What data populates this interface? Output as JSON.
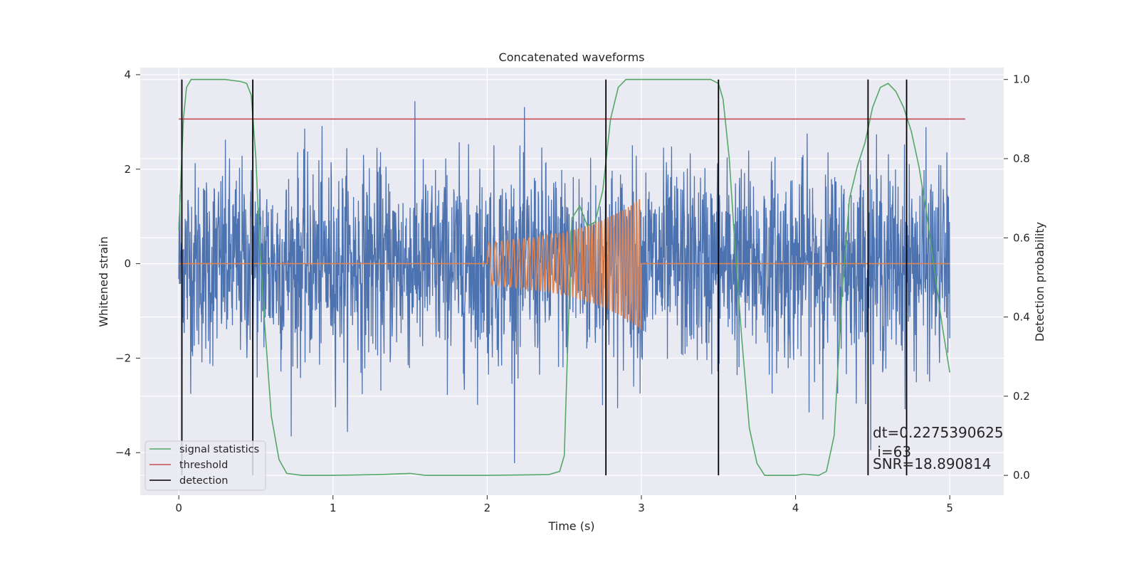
{
  "chart_data": {
    "type": "line",
    "title": "Concatenated waveforms",
    "xlabel": "Time (s)",
    "ylabel_left": "Whitened strain",
    "ylabel_right": "Detection probability",
    "xlim": [
      -0.25,
      5.35
    ],
    "ylim_left": [
      -4.9,
      4.15
    ],
    "ylim_right": [
      -0.05,
      1.03
    ],
    "xticks": [
      0,
      1,
      2,
      3,
      4,
      5
    ],
    "yticks_left": [
      -4,
      -2,
      0,
      2,
      4
    ],
    "yticks_right": [
      0.0,
      0.2,
      0.4,
      0.6,
      0.8,
      1.0
    ],
    "xtick_labels": [
      "0",
      "1",
      "2",
      "3",
      "4",
      "5"
    ],
    "ytick_labels_left": [
      "−4",
      "−2",
      "0",
      "2",
      "4"
    ],
    "ytick_labels_right": [
      "0.0",
      "0.2",
      "0.4",
      "0.6",
      "0.8",
      "1.0"
    ],
    "grid": true,
    "legend_position": "lower-left",
    "colors": {
      "background": "#eaeaf2",
      "grid": "#ffffff",
      "strain": "#4c72b0",
      "injection": "#dd8452",
      "signal_statistics": "#55a868",
      "threshold": "#c44e52",
      "detection": "#000000"
    },
    "series": [
      {
        "name": "",
        "role": "whitened strain",
        "axis": "left",
        "description_values": {
          "x_start": 0,
          "x_end": 5,
          "typical_amplitude": 1.5,
          "max": 3.75,
          "min": -4.5
        }
      },
      {
        "name": "",
        "role": "injected waveform",
        "axis": "left",
        "x": [
          2.0,
          2.1,
          2.2,
          2.3,
          2.4,
          2.5,
          2.6,
          2.7,
          2.8,
          2.9,
          3.0
        ],
        "envelope": [
          0.45,
          0.48,
          0.52,
          0.55,
          0.6,
          0.65,
          0.75,
          0.85,
          1.0,
          1.15,
          1.4
        ]
      },
      {
        "name": "signal statistics",
        "axis": "right",
        "x": [
          0.0,
          0.03,
          0.05,
          0.08,
          0.1,
          0.15,
          0.2,
          0.3,
          0.4,
          0.44,
          0.47,
          0.5,
          0.52,
          0.55,
          0.6,
          0.65,
          0.7,
          0.8,
          1.0,
          1.3,
          1.5,
          1.6,
          2.0,
          2.4,
          2.47,
          2.5,
          2.52,
          2.55,
          2.6,
          2.65,
          2.7,
          2.75,
          2.8,
          2.85,
          2.9,
          3.0,
          3.3,
          3.45,
          3.5,
          3.53,
          3.57,
          3.6,
          3.65,
          3.7,
          3.75,
          3.8,
          3.9,
          4.0,
          4.05,
          4.15,
          4.2,
          4.25,
          4.3,
          4.35,
          4.4,
          4.45,
          4.5,
          4.55,
          4.6,
          4.65,
          4.7,
          4.75,
          4.8,
          4.85,
          4.9,
          4.95,
          5.0
        ],
        "values": [
          0.62,
          0.9,
          0.98,
          1.0,
          1.0,
          1.0,
          1.0,
          1.0,
          0.995,
          0.99,
          0.96,
          0.8,
          0.62,
          0.42,
          0.15,
          0.04,
          0.005,
          0.0,
          0.0,
          0.002,
          0.005,
          0.0,
          0.0,
          0.002,
          0.01,
          0.05,
          0.3,
          0.65,
          0.68,
          0.63,
          0.64,
          0.72,
          0.9,
          0.98,
          1.0,
          1.0,
          1.0,
          1.0,
          0.99,
          0.95,
          0.8,
          0.62,
          0.35,
          0.12,
          0.03,
          0.0,
          0.0,
          0.0,
          0.003,
          0.0,
          0.01,
          0.1,
          0.45,
          0.7,
          0.78,
          0.84,
          0.93,
          0.98,
          0.99,
          0.97,
          0.93,
          0.87,
          0.78,
          0.66,
          0.52,
          0.38,
          0.26
        ]
      },
      {
        "name": "threshold",
        "axis": "right",
        "x": [
          0.0,
          5.1
        ],
        "values": [
          0.9,
          0.9
        ]
      },
      {
        "name": "detection",
        "axis": "right",
        "type": "vlines",
        "x": [
          0.02,
          0.48,
          2.77,
          3.5,
          4.47,
          4.72
        ],
        "ymin": 0.0,
        "ymax": 1.0
      }
    ],
    "annotations": [
      "dt=0.2275390625",
      " i=63",
      "SNR=18.890814"
    ]
  }
}
